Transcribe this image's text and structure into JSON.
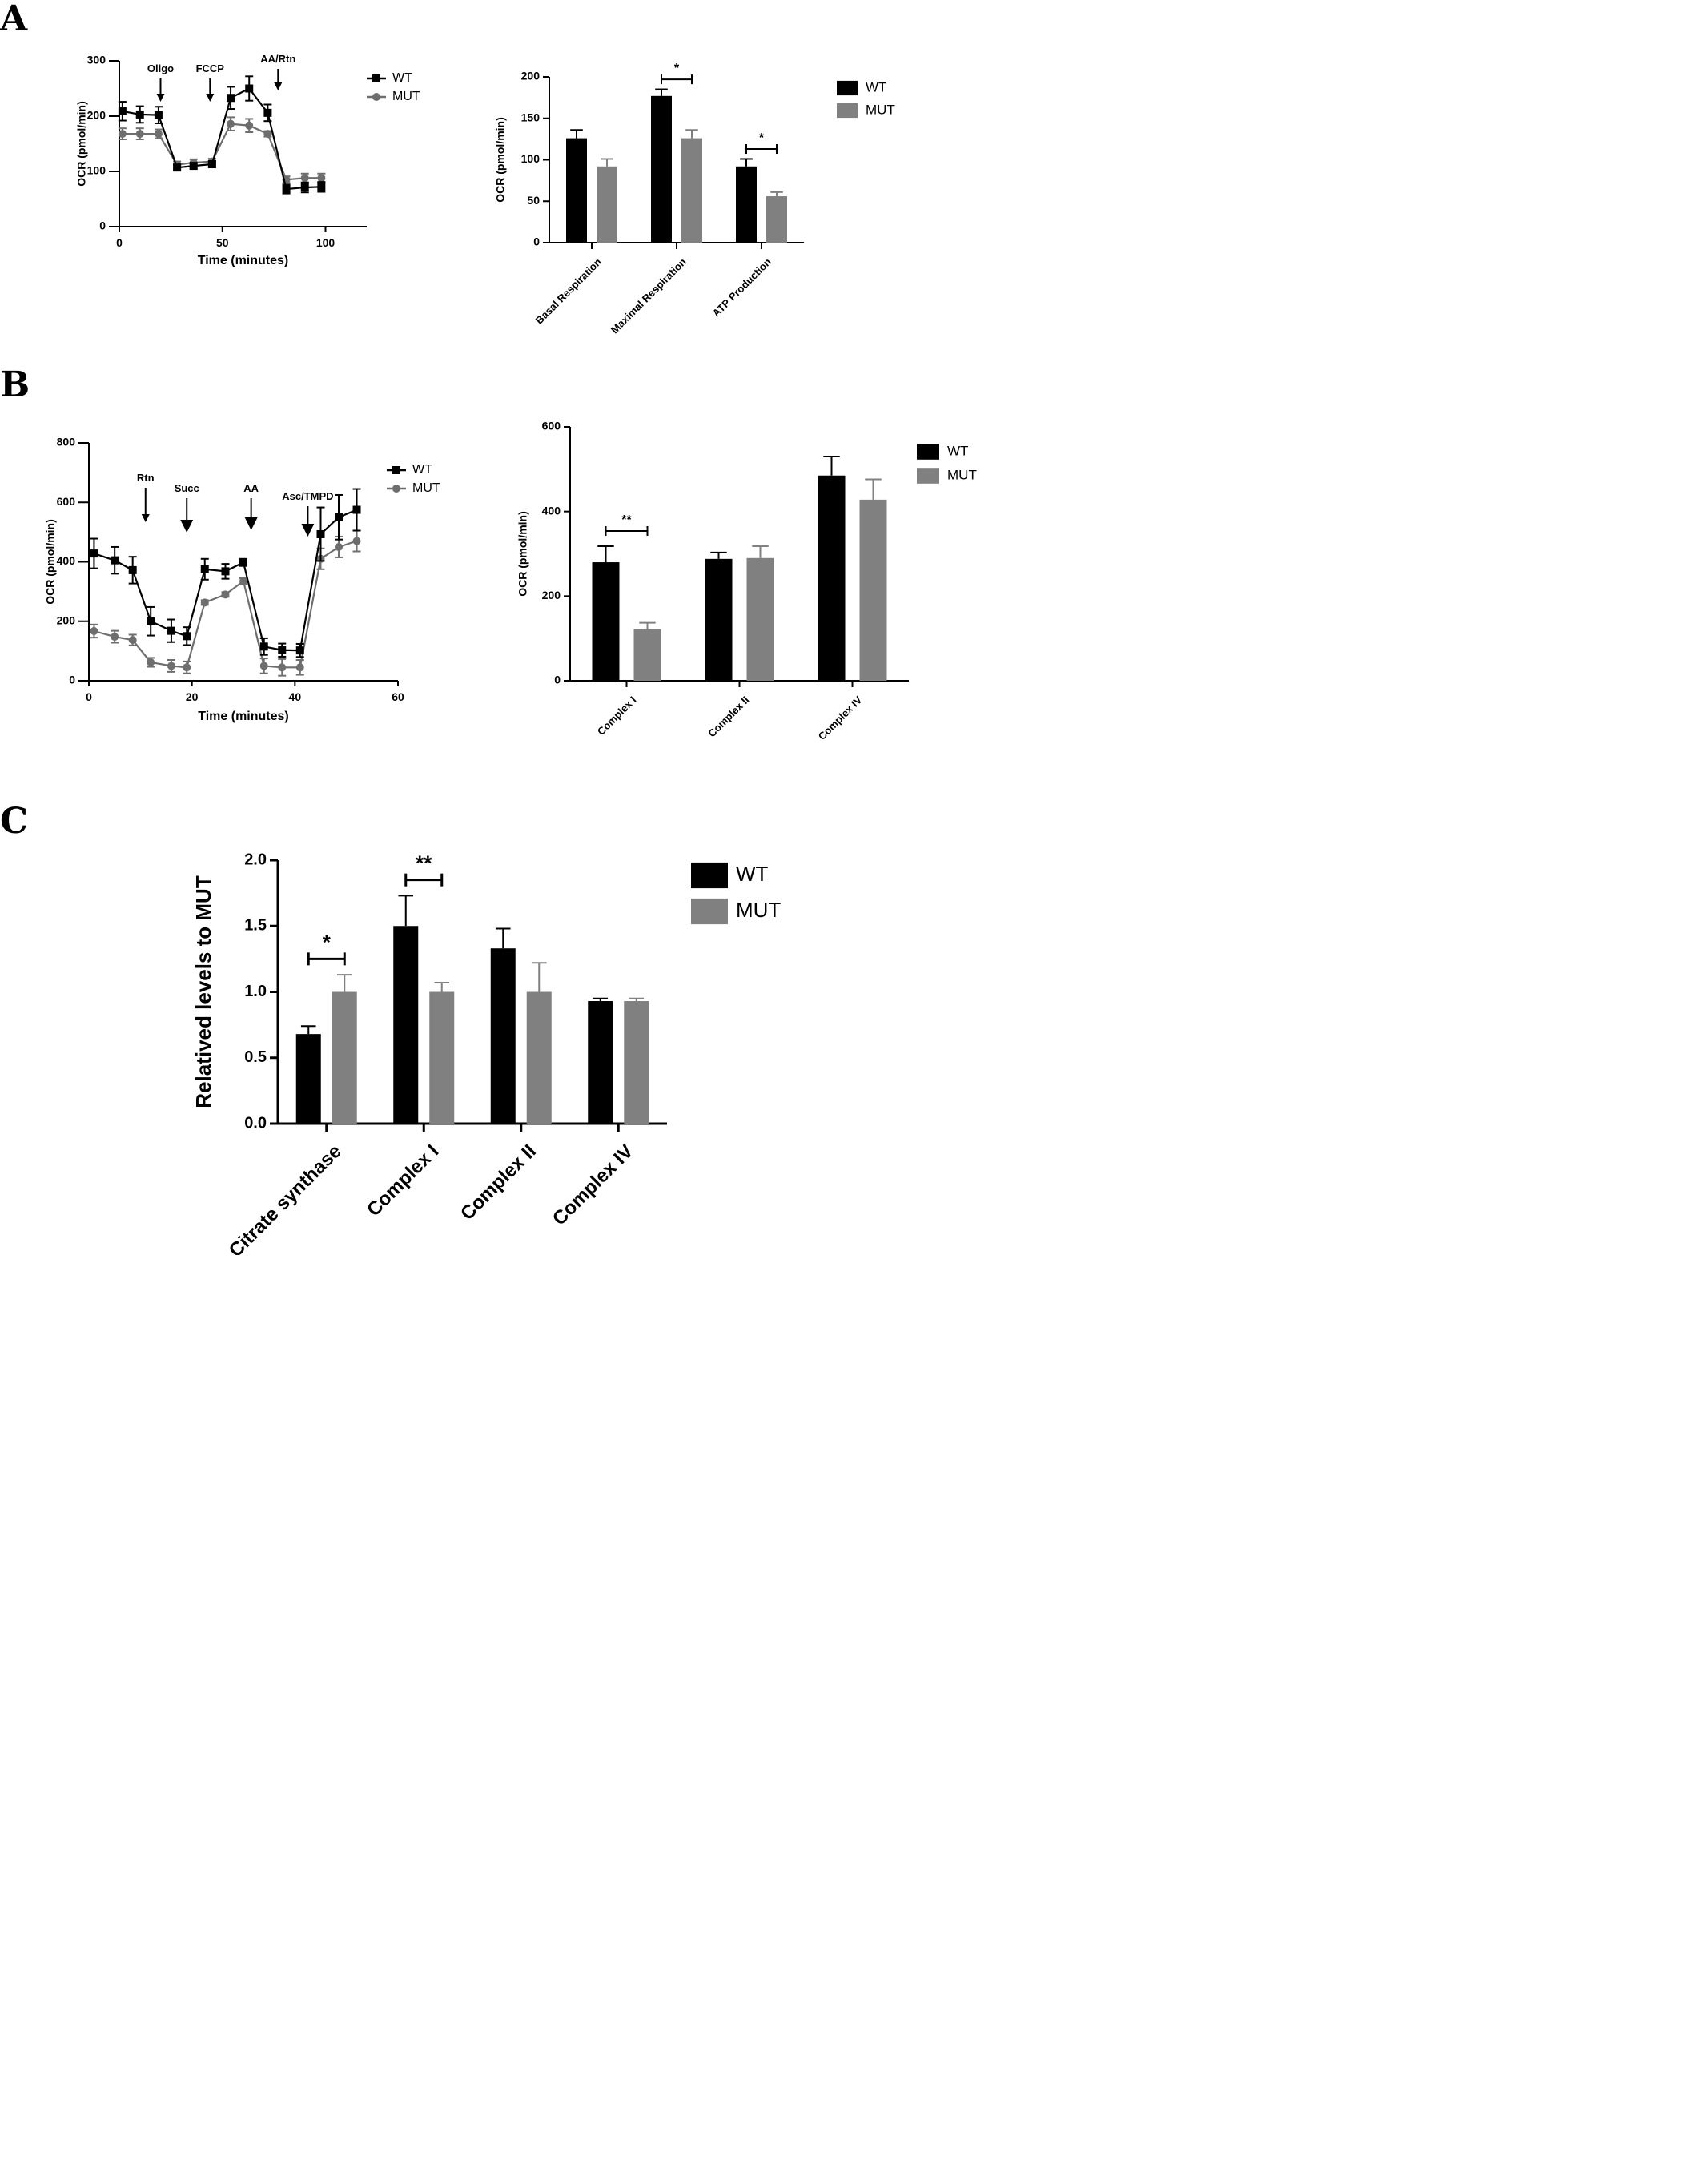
{
  "figure": {
    "panel_letters": [
      "A",
      "B",
      "C"
    ]
  },
  "colors": {
    "WT": "#000000",
    "MUT": "#6e6e6e",
    "MUT_bar": "#808080",
    "axis": "#000000"
  },
  "chart_data": [
    {
      "id": "A1",
      "panel": "A",
      "type": "line",
      "xlabel": "Time (minutes)",
      "ylabel": "OCR (pmol/min)",
      "xlim": [
        0,
        120
      ],
      "ylim": [
        0,
        300
      ],
      "xticks": [
        0,
        50,
        100
      ],
      "yticks": [
        0,
        100,
        200,
        300
      ],
      "legend_position": "top-right",
      "legend": [
        "WT",
        "MUT"
      ],
      "annotations": [
        {
          "label": "Oligo",
          "x": 20,
          "size": "small"
        },
        {
          "label": "FCCP",
          "x": 44,
          "size": "small"
        },
        {
          "label": "AA/Rtn",
          "x": 77,
          "size": "small"
        }
      ],
      "series": [
        {
          "name": "WT",
          "marker": "square",
          "x": [
            1.5,
            10,
            19,
            28,
            36,
            45,
            54,
            63,
            72,
            81,
            90,
            98
          ],
          "y": [
            209,
            203,
            202,
            107,
            110,
            113,
            233,
            250,
            206,
            68,
            71,
            72
          ],
          "err": [
            17,
            15,
            15,
            5,
            5,
            5,
            20,
            22,
            15,
            8,
            9,
            9
          ]
        },
        {
          "name": "MUT",
          "marker": "circle",
          "x": [
            1.5,
            10,
            19,
            28,
            36,
            45,
            54,
            63,
            72,
            81,
            90,
            98
          ],
          "y": [
            168,
            168,
            168,
            112,
            116,
            118,
            186,
            183,
            168,
            85,
            88,
            88
          ],
          "err": [
            10,
            10,
            8,
            6,
            6,
            5,
            12,
            12,
            5,
            6,
            8,
            8
          ]
        }
      ]
    },
    {
      "id": "A2",
      "panel": "A",
      "type": "bar",
      "ylabel": "OCR (pmol/min)",
      "ylim": [
        0,
        200
      ],
      "yticks": [
        0,
        50,
        100,
        150,
        200
      ],
      "categories": [
        "Basal Respiration",
        "Maximal Respiration",
        "ATP Production"
      ],
      "legend_position": "top-right",
      "legend": [
        "WT",
        "MUT"
      ],
      "series": [
        {
          "name": "WT",
          "values": [
            126,
            177,
            92
          ],
          "err": [
            10,
            8,
            9
          ]
        },
        {
          "name": "MUT",
          "values": [
            92,
            126,
            56
          ],
          "err": [
            9,
            10,
            5
          ]
        }
      ],
      "significance": [
        {
          "category": 1,
          "label": "*"
        },
        {
          "category": 2,
          "label": "*"
        }
      ]
    },
    {
      "id": "B1",
      "panel": "B",
      "type": "line",
      "xlabel": "Time (minutes)",
      "ylabel": "OCR (pmol/min)",
      "xlim": [
        0,
        60
      ],
      "ylim": [
        0,
        800
      ],
      "xticks": [
        0,
        20,
        40,
        60
      ],
      "yticks": [
        0,
        200,
        400,
        600,
        800
      ],
      "legend_position": "top-right",
      "legend": [
        "WT",
        "MUT"
      ],
      "annotations": [
        {
          "label": "Rtn",
          "x": 11,
          "size": "small"
        },
        {
          "label": "Succ",
          "x": 19,
          "size": "large"
        },
        {
          "label": "AA",
          "x": 31.5,
          "size": "large"
        },
        {
          "label": "Asc/TMPD",
          "x": 42.5,
          "size": "large"
        }
      ],
      "series": [
        {
          "name": "WT",
          "marker": "square",
          "x": [
            1,
            5,
            8.5,
            12,
            16,
            19,
            22.5,
            26.5,
            30,
            34,
            37.5,
            41,
            45,
            48.5,
            52
          ],
          "y": [
            428,
            405,
            372,
            200,
            168,
            150,
            375,
            368,
            398,
            115,
            103,
            102,
            493,
            550,
            575
          ],
          "err": [
            50,
            45,
            45,
            48,
            38,
            30,
            35,
            25,
            12,
            28,
            22,
            22,
            90,
            75,
            70
          ]
        },
        {
          "name": "MUT",
          "marker": "circle",
          "x": [
            1,
            5,
            8.5,
            12,
            16,
            19,
            22.5,
            26.5,
            30,
            34,
            37.5,
            41,
            45,
            48.5,
            52
          ],
          "y": [
            167,
            148,
            137,
            62,
            50,
            45,
            263,
            290,
            335,
            50,
            45,
            45,
            410,
            450,
            470
          ],
          "err": [
            22,
            20,
            18,
            15,
            20,
            20,
            8,
            8,
            10,
            25,
            28,
            25,
            35,
            35,
            35
          ]
        }
      ]
    },
    {
      "id": "B2",
      "panel": "B",
      "type": "bar",
      "ylabel": "OCR (pmol/min)",
      "ylim": [
        0,
        600
      ],
      "yticks": [
        0,
        200,
        400,
        600
      ],
      "categories": [
        "Complex I",
        "Complex II",
        "Complex IV"
      ],
      "legend_position": "top-right",
      "legend": [
        "WT",
        "MUT"
      ],
      "series": [
        {
          "name": "WT",
          "values": [
            280,
            288,
            485
          ],
          "err": [
            38,
            15,
            45
          ]
        },
        {
          "name": "MUT",
          "values": [
            122,
            290,
            428
          ],
          "err": [
            15,
            28,
            48
          ]
        }
      ],
      "significance": [
        {
          "category": 0,
          "label": "**"
        }
      ]
    },
    {
      "id": "C",
      "panel": "C",
      "type": "bar",
      "ylabel": "Relatived levels to MUT",
      "ylim": [
        0,
        2.0
      ],
      "yticks": [
        "0.0",
        "0.5",
        "1.0",
        "1.5",
        "2.0"
      ],
      "categories": [
        "Citrate synthase",
        "Complex I",
        "Complex II",
        "Complex IV"
      ],
      "legend_position": "top-right",
      "legend": [
        "WT",
        "MUT"
      ],
      "series": [
        {
          "name": "WT",
          "values": [
            0.68,
            1.5,
            1.33,
            0.93
          ],
          "err": [
            0.06,
            0.23,
            0.15,
            0.02
          ]
        },
        {
          "name": "MUT",
          "values": [
            1.0,
            1.0,
            1.0,
            0.93
          ],
          "err": [
            0.13,
            0.07,
            0.22,
            0.02
          ]
        }
      ],
      "significance": [
        {
          "category": 0,
          "label": "*"
        },
        {
          "category": 1,
          "label": "**"
        }
      ]
    }
  ]
}
